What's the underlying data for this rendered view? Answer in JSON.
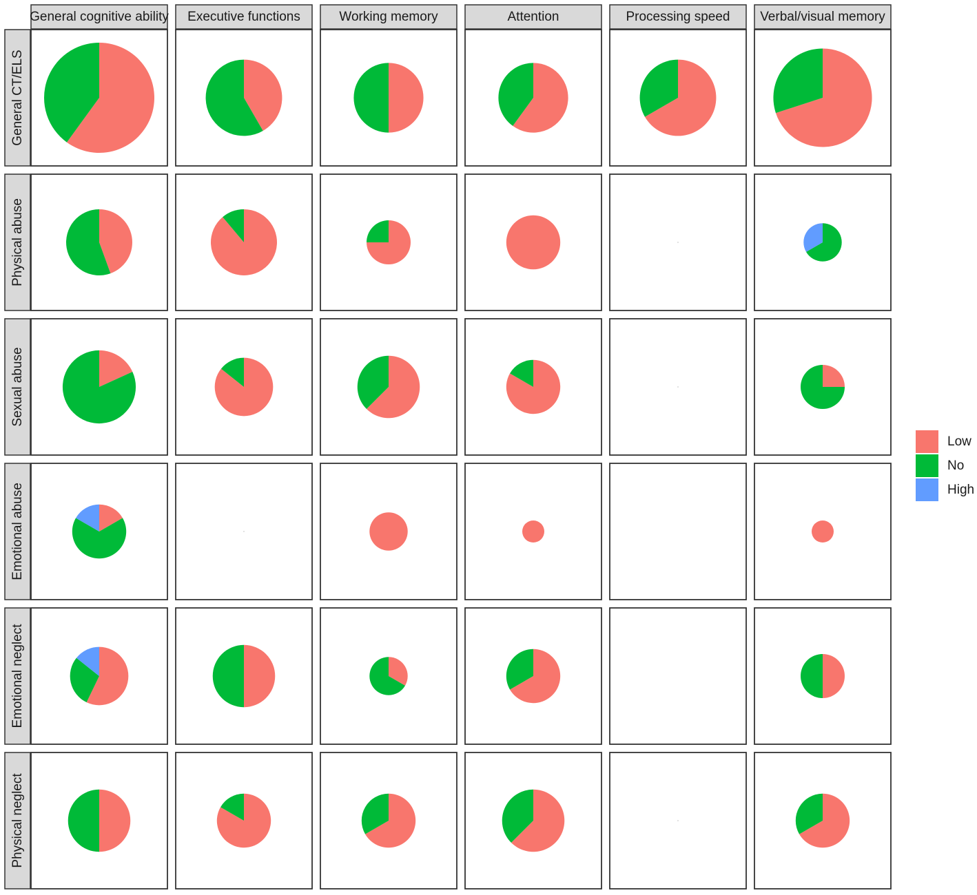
{
  "chart_data": {
    "type": "pie",
    "columns": [
      "General cognitive ability",
      "Executive functions",
      "Working memory",
      "Attention",
      "Processing speed",
      "Verbal/visual memory"
    ],
    "rows": [
      "General CT/ELS",
      "Physical abuse",
      "Sexual abuse",
      "Emotional abuse",
      "Emotional neglect",
      "Physical neglect"
    ],
    "series": [
      {
        "name": "Low",
        "color": "#f8766d",
        "values": [
          [
            15,
            5,
            5,
            6,
            8,
            14
          ],
          [
            4,
            8,
            3,
            6,
            0,
            0
          ],
          [
            2,
            6,
            5,
            5,
            0,
            1
          ],
          [
            1,
            0,
            3,
            1,
            null,
            1
          ],
          [
            4,
            4,
            1,
            4,
            null,
            2
          ],
          [
            4,
            5,
            4,
            5,
            0,
            4
          ]
        ]
      },
      {
        "name": "No",
        "color": "#00ba38",
        "values": [
          [
            10,
            7,
            5,
            4,
            4,
            6
          ],
          [
            5,
            1,
            1,
            0,
            0,
            2
          ],
          [
            9,
            1,
            3,
            1,
            0,
            3
          ],
          [
            4,
            0,
            0,
            0,
            null,
            0
          ],
          [
            2,
            4,
            2,
            2,
            null,
            2
          ],
          [
            4,
            1,
            2,
            3,
            0,
            2
          ]
        ]
      },
      {
        "name": "High",
        "color": "#619cff",
        "values": [
          [
            0,
            0,
            0,
            0,
            0,
            0
          ],
          [
            0,
            0,
            0,
            0,
            0,
            1
          ],
          [
            0,
            0,
            0,
            0,
            0,
            0
          ],
          [
            1,
            0,
            0,
            0,
            null,
            0
          ],
          [
            1,
            0,
            0,
            0,
            null,
            0
          ],
          [
            0,
            0,
            0,
            0,
            0,
            0
          ]
        ]
      }
    ]
  }
}
